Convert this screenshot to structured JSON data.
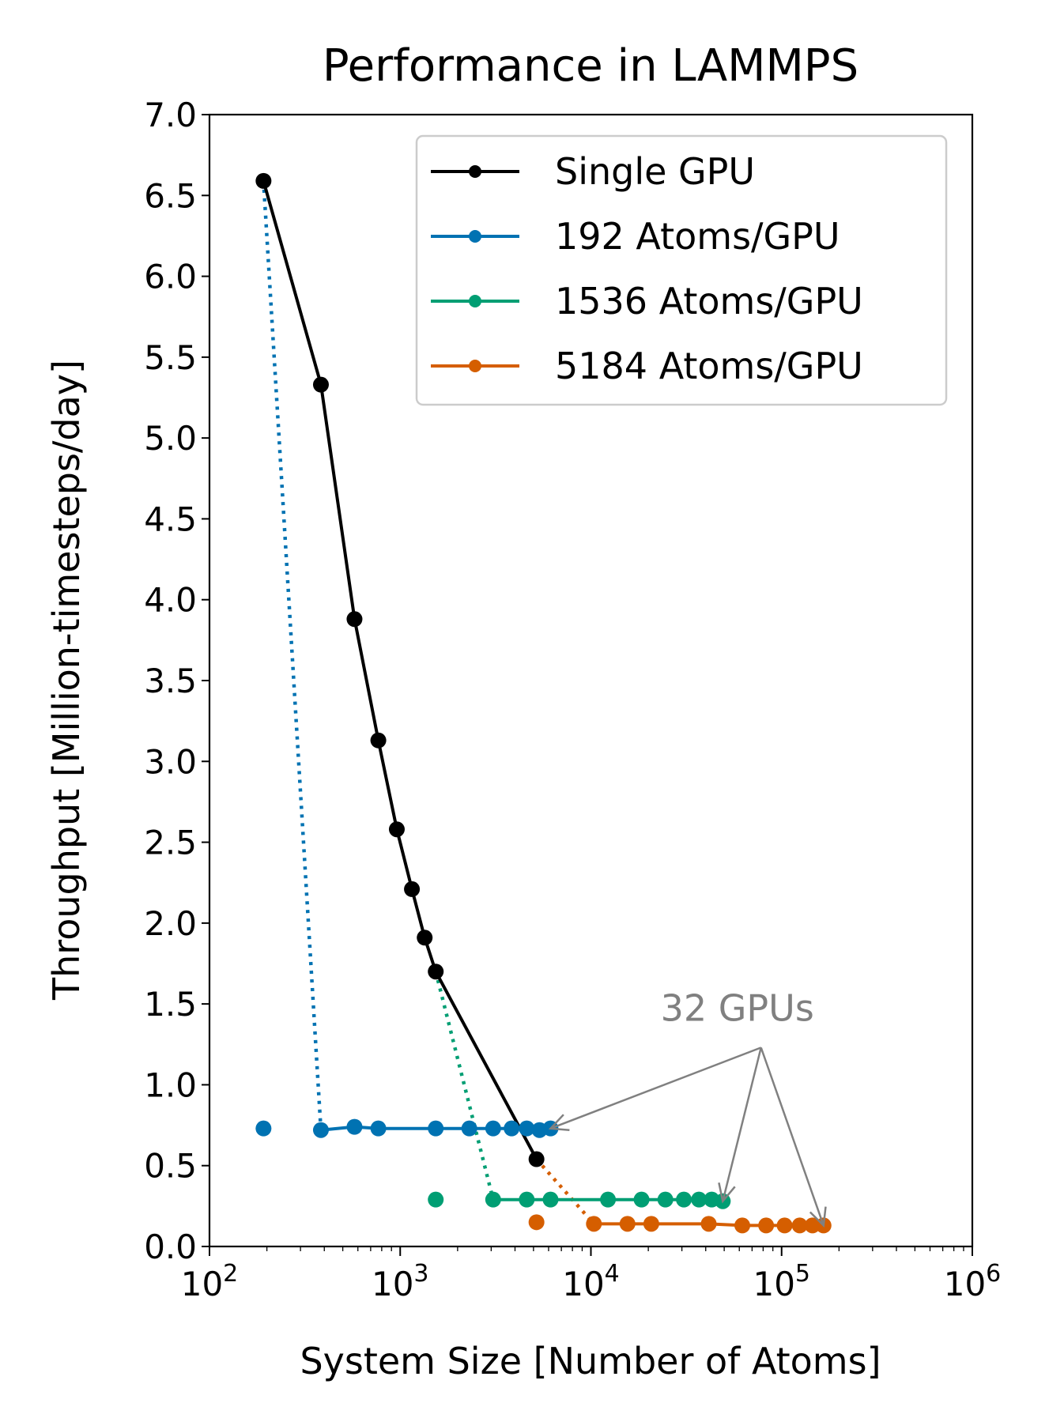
{
  "chart_data": {
    "type": "line",
    "title": "Performance in LAMMPS",
    "xlabel": "System Size [Number of Atoms]",
    "ylabel": "Throughput [Million-timesteps/day]",
    "xscale": "log",
    "xlim": [
      100,
      1000000
    ],
    "ylim": [
      0.0,
      7.0
    ],
    "xticks": [
      {
        "value": 100,
        "base": "10",
        "exp": "2"
      },
      {
        "value": 1000,
        "base": "10",
        "exp": "3"
      },
      {
        "value": 10000,
        "base": "10",
        "exp": "4"
      },
      {
        "value": 100000,
        "base": "10",
        "exp": "5"
      },
      {
        "value": 1000000,
        "base": "10",
        "exp": "6"
      }
    ],
    "yticks": [
      {
        "value": 0.0,
        "label": "0.0"
      },
      {
        "value": 0.5,
        "label": "0.5"
      },
      {
        "value": 1.0,
        "label": "1.0"
      },
      {
        "value": 1.5,
        "label": "1.5"
      },
      {
        "value": 2.0,
        "label": "2.0"
      },
      {
        "value": 2.5,
        "label": "2.5"
      },
      {
        "value": 3.0,
        "label": "3.0"
      },
      {
        "value": 3.5,
        "label": "3.5"
      },
      {
        "value": 4.0,
        "label": "4.0"
      },
      {
        "value": 4.5,
        "label": "4.5"
      },
      {
        "value": 5.0,
        "label": "5.0"
      },
      {
        "value": 5.5,
        "label": "5.5"
      },
      {
        "value": 6.0,
        "label": "6.0"
      },
      {
        "value": 6.5,
        "label": "6.5"
      },
      {
        "value": 7.0,
        "label": "7.0"
      }
    ],
    "legend_position": "top-right",
    "series": [
      {
        "name": "Single GPU",
        "color": "#000000",
        "x": [
          192,
          384,
          576,
          768,
          960,
          1152,
          1344,
          1536,
          5184
        ],
        "y": [
          6.59,
          5.33,
          3.88,
          3.13,
          2.58,
          2.21,
          1.91,
          1.7,
          0.54
        ]
      },
      {
        "name": "192 Atoms/GPU",
        "color": "#0072B2",
        "single_point": {
          "x": 192,
          "y": 0.73
        },
        "x": [
          384,
          576,
          768,
          1536,
          2304,
          3072,
          3840,
          4608,
          5376,
          6144
        ],
        "y": [
          0.72,
          0.74,
          0.73,
          0.73,
          0.73,
          0.73,
          0.73,
          0.73,
          0.72,
          0.73
        ]
      },
      {
        "name": "1536 Atoms/GPU",
        "color": "#009E73",
        "single_point": {
          "x": 1536,
          "y": 0.29
        },
        "x": [
          3072,
          4608,
          6144,
          12288,
          18432,
          24576,
          30720,
          36864,
          43008,
          49152
        ],
        "y": [
          0.29,
          0.29,
          0.29,
          0.29,
          0.29,
          0.29,
          0.29,
          0.29,
          0.29,
          0.28
        ]
      },
      {
        "name": "5184 Atoms/GPU",
        "color": "#D55E00",
        "single_point": {
          "x": 5184,
          "y": 0.15
        },
        "x": [
          10368,
          15552,
          20736,
          41472,
          62208,
          82944,
          103680,
          124416,
          145152,
          165888
        ],
        "y": [
          0.14,
          0.14,
          0.14,
          0.14,
          0.13,
          0.13,
          0.13,
          0.13,
          0.13,
          0.13
        ]
      }
    ],
    "dotted_connectors": [
      {
        "series": "192 Atoms/GPU",
        "from": {
          "x": 192,
          "y": 6.59
        },
        "to": {
          "x": 384,
          "y": 0.72
        }
      },
      {
        "series": "1536 Atoms/GPU",
        "from": {
          "x": 1536,
          "y": 1.7
        },
        "to": {
          "x": 3072,
          "y": 0.29
        }
      },
      {
        "series": "5184 Atoms/GPU",
        "from": {
          "x": 5184,
          "y": 0.54
        },
        "to": {
          "x": 10368,
          "y": 0.14
        }
      }
    ],
    "annotation": {
      "text": "32 GPUs",
      "color": "#808080",
      "anchor": {
        "x": 78000,
        "y": 1.23
      },
      "text_at": {
        "x": 78000,
        "y": 1.47
      },
      "targets": [
        {
          "x": 6144,
          "y": 0.73
        },
        {
          "x": 49152,
          "y": 0.28
        },
        {
          "x": 165888,
          "y": 0.13
        }
      ]
    }
  }
}
